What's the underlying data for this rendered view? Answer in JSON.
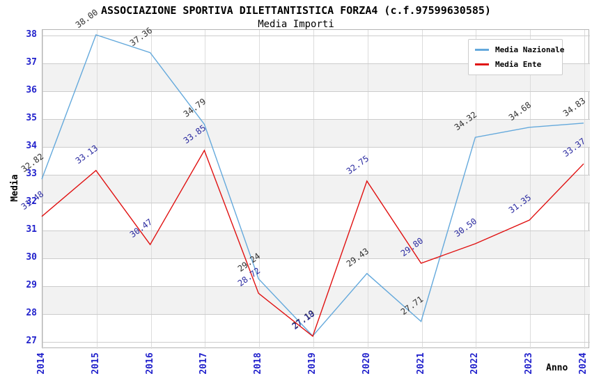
{
  "chart_data": {
    "type": "line",
    "title": "ASSOCIAZIONE SPORTIVA DILETTANTISTICA FORZA4 (c.f.97599630585)",
    "subtitle": "Media Importi",
    "xlabel": "Anno",
    "ylabel": "Media",
    "x": [
      2014,
      2015,
      2016,
      2017,
      2018,
      2019,
      2020,
      2021,
      2022,
      2023,
      2024
    ],
    "ylim": [
      27,
      38
    ],
    "yticks": [
      27,
      28,
      29,
      30,
      31,
      32,
      33,
      34,
      35,
      36,
      37,
      38
    ],
    "grid": true,
    "legend_position": "top-right",
    "series": [
      {
        "name": "Media Nazionale",
        "color": "#64a9dc",
        "label_color": "#303030",
        "values": [
          32.82,
          38.0,
          37.36,
          34.79,
          29.24,
          27.19,
          29.43,
          27.71,
          34.32,
          34.68,
          34.83
        ]
      },
      {
        "name": "Media Ente",
        "color": "#e01111",
        "label_color": "#2a2aa0",
        "values": [
          31.48,
          33.13,
          30.47,
          33.85,
          28.72,
          27.18,
          32.75,
          29.8,
          30.5,
          31.35,
          33.37
        ]
      }
    ],
    "colors": {
      "tick_label": "#2222cc",
      "grid_h": "#cccccc",
      "grid_v": "#dcdcdc",
      "band": "#f2f2f2",
      "spine": "#b4b4b4"
    }
  }
}
